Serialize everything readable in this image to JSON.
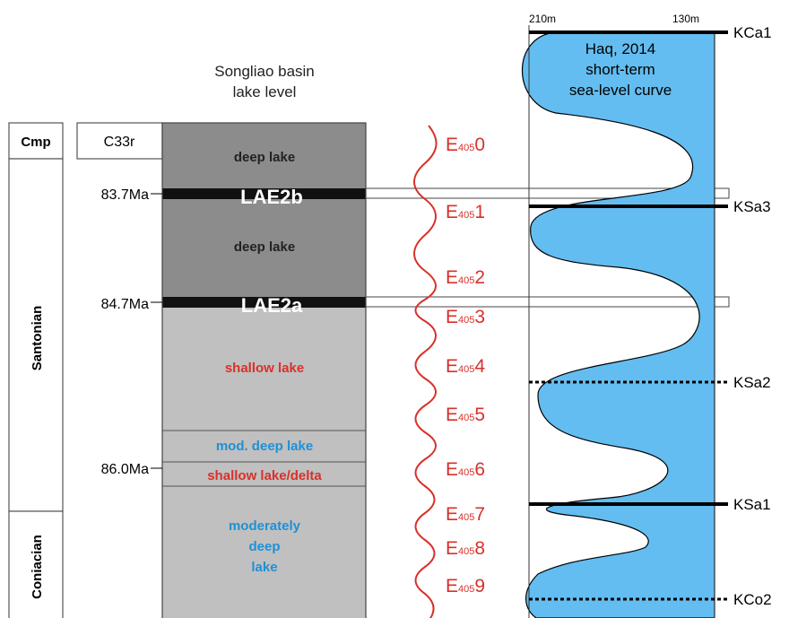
{
  "header": {
    "title_line1": "Songliao basin",
    "title_line2": "lake level",
    "curve_title_line1": "Haq, 2014",
    "curve_title_line2": "short-term",
    "curve_title_line3": "sea-level curve",
    "axis_left_tick": "210m",
    "axis_right_tick": "130m"
  },
  "stages": {
    "cmp": "Cmp",
    "santonian": "Santonian",
    "coniacian": "Coniacian"
  },
  "chron": "C33r",
  "ages": {
    "a1": "83.7Ma",
    "a2": "84.7Ma",
    "a3": "86.0Ma"
  },
  "lake_intervals": {
    "deep1": "deep lake",
    "lae2b": "LAE2b",
    "deep2": "deep lake",
    "lae2a": "LAE2a",
    "shallow1": "shallow lake",
    "mod_deep": "mod. deep lake",
    "shallow_delta": "shallow lake/delta",
    "moderately": "moderately",
    "deep_word": "deep",
    "lake_word": "lake"
  },
  "eccentricity": {
    "prefix": "E",
    "subscript": "405",
    "cycles": [
      "0",
      "1",
      "2",
      "3",
      "4",
      "5",
      "6",
      "7",
      "8",
      "9"
    ]
  },
  "sequence_boundaries": {
    "kca1": "KCa1",
    "ksa3": "KSa3",
    "ksa2": "KSa2",
    "ksa1": "KSa1",
    "kco2": "KCo2"
  },
  "colors": {
    "deep_gray": "#8c8c8c",
    "light_gray": "#c0c0c0",
    "black_band": "#111111",
    "red_text": "#d8312a",
    "blue_text": "#1f90d6",
    "sea_fill": "#63bdf0"
  }
}
